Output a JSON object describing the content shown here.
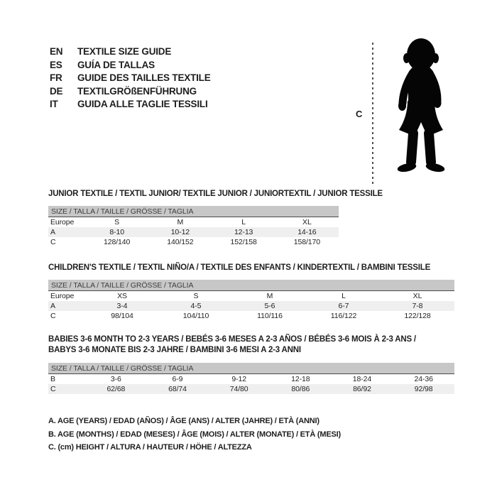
{
  "page": {
    "background": "#ffffff",
    "text_color": "#1e1e1e",
    "header_bar_color": "#c7c7c7",
    "shaded_row_color": "#efefef",
    "silhouette_color": "#050505"
  },
  "languages": [
    {
      "code": "EN",
      "label": "TEXTILE SIZE GUIDE"
    },
    {
      "code": "ES",
      "label": "GUÍA DE TALLAS"
    },
    {
      "code": "FR",
      "label": "GUIDE DES TAILLES TEXTILE"
    },
    {
      "code": "DE",
      "label": "TEXTILGRÖßENFÜHRUNG"
    },
    {
      "code": "IT",
      "label": "GUIDA ALLE TAGLIE TESSILI"
    }
  ],
  "figure": {
    "height_label": "C"
  },
  "sections": [
    {
      "title_lines": [
        "JUNIOR TEXTILE / TEXTIL JUNIOR/ TEXTILE JUNIOR / JUNIORTEXTIL / JUNIOR TESSILE"
      ],
      "size_header": "SIZE / TALLA / TAILLE / GRÖSSE / TAGLIA",
      "rows": [
        [
          "Europe",
          "S",
          "M",
          "L",
          "XL"
        ],
        [
          "A",
          "8-10",
          "10-12",
          "12-13",
          "14-16"
        ],
        [
          "C",
          "128/140",
          "140/152",
          "152/158",
          "158/170"
        ]
      ]
    },
    {
      "title_lines": [
        "CHILDREN'S TEXTILE / TEXTIL NIÑO/A / TEXTILE DES ENFANTS / KINDERTEXTIL / BAMBINI TESSILE"
      ],
      "size_header": "SIZE / TALLA / TAILLE / GRÖSSE / TAGLIA",
      "rows": [
        [
          "Europe",
          "XS",
          "S",
          "M",
          "L",
          "XL"
        ],
        [
          "A",
          "3-4",
          "4-5",
          "5-6",
          "6-7",
          "7-8"
        ],
        [
          "C",
          "98/104",
          "104/110",
          "110/116",
          "116/122",
          "122/128"
        ]
      ]
    },
    {
      "title_lines": [
        "BABIES 3-6 MONTH TO 2-3 YEARS / BEBÉS 3-6 MESES A 2-3 AÑOS / BÉBÉS 3-6 MOIS À 2-3 ANS /",
        "BABYS 3-6 MONATE BIS 2-3 JAHRE / BAMBINI 3-6 MESI A 2-3 ANNI"
      ],
      "size_header": "SIZE / TALLA / TAILLE / GRÖSSE / TAGLIA",
      "rows": [
        [
          "B",
          "3-6",
          "6-9",
          "9-12",
          "12-18",
          "18-24",
          "24-36"
        ],
        [
          "C",
          "62/68",
          "68/74",
          "74/80",
          "80/86",
          "86/92",
          "92/98"
        ]
      ]
    }
  ],
  "legend": [
    "A. AGE (YEARS) / EDAD (AÑOS) / ÂGE (ANS) / ALTER (JAHRE) / ETÀ (ANNI)",
    "B. AGE (MONTHS) / EDAD (MESES) / ÂGE (MOIS) / ALTER (MONATE) / ETÀ (MESI)",
    "C. (cm) HEIGHT / ALTURA / HAUTEUR / HÖHE / ALTEZZA"
  ]
}
